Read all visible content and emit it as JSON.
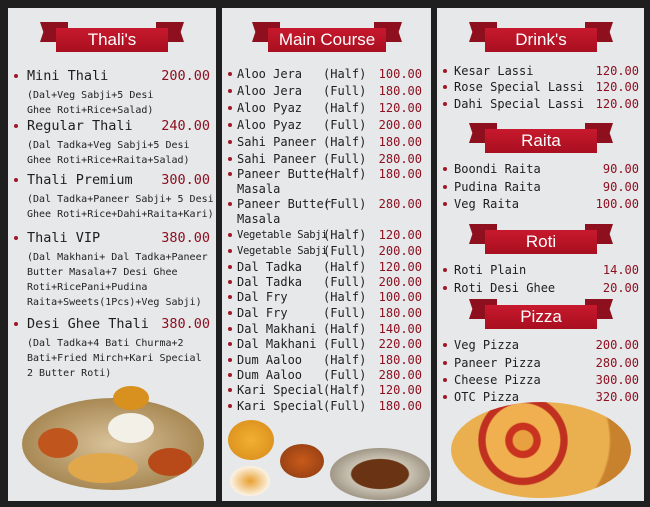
{
  "thalis": {
    "title": "Thali's",
    "items": [
      {
        "name": "Mini Thali",
        "price": "200.00",
        "desc": [
          "(Dal+Veg Sabji+5 Desi",
          "Ghee Roti+Rice+Salad)"
        ]
      },
      {
        "name": "Regular Thali",
        "price": "240.00",
        "desc": [
          "(Dal Tadka+Veg Sabji+5 Desi",
          "Ghee Roti+Rice+Raita+Salad)"
        ]
      },
      {
        "name": "Thali Premium",
        "price": "300.00",
        "desc": [
          "(Dal Tadka+Paneer Sabji+ 5 Desi",
          "Ghee Roti+Rice+Dahi+Raita+Kari)"
        ]
      },
      {
        "name": "Thali VIP",
        "price": "380.00",
        "desc": [
          "(Dal Makhani+ Dal Tadka+Paneer",
          "Butter Masala+7 Desi Ghee",
          "Roti+RicePani+Pudina",
          "Raita+Sweets(1Pcs)+Veg Sabji)"
        ]
      },
      {
        "name": "Desi Ghee Thali",
        "price": "380.00",
        "desc": [
          "(Dal Tadka+4 Bati Churma+2",
          "Bati+Fried Mirch+Kari Special",
          "2 Butter Roti)"
        ]
      }
    ]
  },
  "main_course": {
    "title": "Main Course",
    "items": [
      {
        "name": "Aloo Jera",
        "size": "(Half)",
        "price": "100.00"
      },
      {
        "name": "Aloo Jera",
        "size": "(Full)",
        "price": "180.00"
      },
      {
        "name": "Aloo Pyaz",
        "size": "(Half)",
        "price": "120.00"
      },
      {
        "name": "Aloo Pyaz",
        "size": "(Full)",
        "price": "200.00"
      },
      {
        "name": "Sahi Paneer",
        "size": "(Half)",
        "price": "180.00"
      },
      {
        "name": "Sahi Paneer",
        "size": "(Full)",
        "price": "280.00"
      },
      {
        "name": "Paneer Butter",
        "name2": "Masala",
        "size": "(Half)",
        "price": "180.00"
      },
      {
        "name": "Paneer Butter",
        "name2": "Masala",
        "size": "(Full)",
        "price": "280.00"
      },
      {
        "name": "Vegetable Sabji",
        "size": "(Half)",
        "price": "120.00"
      },
      {
        "name": "Vegetable Sabji",
        "size": "(Full)",
        "price": "200.00"
      },
      {
        "name": "Dal Tadka",
        "size": "(Half)",
        "price": "120.00"
      },
      {
        "name": "Dal Tadka",
        "size": "(Full)",
        "price": "200.00"
      },
      {
        "name": "Dal Fry",
        "size": "(Half)",
        "price": "100.00"
      },
      {
        "name": "Dal Fry",
        "size": "(Full)",
        "price": "180.00"
      },
      {
        "name": "Dal Makhani",
        "size": "(Half)",
        "price": "140.00"
      },
      {
        "name": "Dal Makhani",
        "size": "(Full)",
        "price": "220.00"
      },
      {
        "name": "Dum Aaloo",
        "size": "(Half)",
        "price": "180.00"
      },
      {
        "name": "Dum Aaloo",
        "size": "(Full)",
        "price": "280.00"
      },
      {
        "name": "Kari Special",
        "size": "(Half)",
        "price": "120.00"
      },
      {
        "name": "Kari Special",
        "size": "(Full)",
        "price": "180.00"
      }
    ]
  },
  "drinks": {
    "title": "Drink's",
    "items": [
      {
        "name": "Kesar Lassi",
        "price": "120.00"
      },
      {
        "name": "Rose Special Lassi",
        "price": "120.00"
      },
      {
        "name": "Dahi Special Lassi",
        "price": "120.00"
      }
    ]
  },
  "raita": {
    "title": "Raita",
    "items": [
      {
        "name": "Boondi Raita",
        "price": "90.00"
      },
      {
        "name": "Pudina Raita",
        "price": "90.00"
      },
      {
        "name": "Veg Raita",
        "price": "100.00"
      }
    ]
  },
  "roti": {
    "title": "Roti",
    "items": [
      {
        "name": "Roti Plain",
        "price": "14.00"
      },
      {
        "name": "Roti Desi Ghee",
        "price": "20.00"
      }
    ]
  },
  "pizza": {
    "title": "Pizza",
    "items": [
      {
        "name": "Veg Pizza",
        "price": "200.00"
      },
      {
        "name": "Paneer Pizza",
        "price": "280.00"
      },
      {
        "name": "Cheese Pizza",
        "price": "300.00"
      },
      {
        "name": "OTC Pizza",
        "price": "320.00"
      }
    ]
  }
}
